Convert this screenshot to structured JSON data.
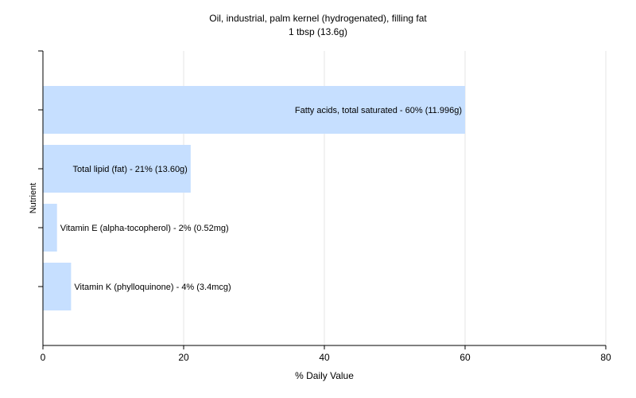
{
  "chart_data": {
    "type": "bar",
    "orientation": "horizontal",
    "title": "Oil, industrial, palm kernel (hydrogenated), filling fat",
    "subtitle": "1 tbsp (13.6g)",
    "xlabel": "% Daily Value",
    "ylabel": "Nutrient",
    "xlim": [
      0,
      80
    ],
    "xticks": [
      0,
      20,
      40,
      60,
      80
    ],
    "grid": true,
    "legend": "none",
    "bar_color": "#c6dfff",
    "categories": [
      "Fatty acids, total saturated",
      "Total lipid (fat)",
      "Vitamin E (alpha-tocopherol)",
      "Vitamin K (phylloquinone)"
    ],
    "values": [
      60,
      21,
      2,
      4
    ],
    "labels": [
      "Fatty acids, total saturated - 60% (11.996g)",
      "Total lipid (fat) - 21% (13.60g)",
      "Vitamin E (alpha-tocopherol) - 2% (0.52mg)",
      "Vitamin K (phylloquinone) - 4% (3.4mcg)"
    ]
  }
}
